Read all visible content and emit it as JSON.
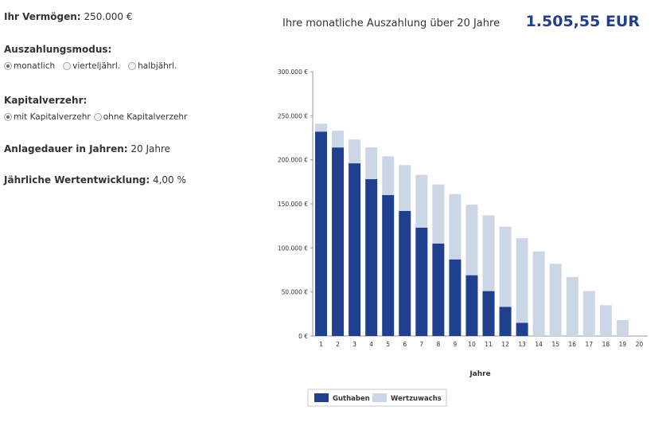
{
  "form": {
    "vermoegen": {
      "label": "Ihr Vermögen:",
      "value": "250.000 €"
    },
    "auszahlungsmodus": {
      "label": "Auszahlungsmodus:",
      "options": [
        {
          "label": "monatlich",
          "checked": true
        },
        {
          "label": "vierteljährl.",
          "checked": false
        },
        {
          "label": "halbjährl.",
          "checked": false
        }
      ]
    },
    "kapitalverzehr": {
      "label": "Kapitalverzehr:",
      "options": [
        {
          "label": "mit Kapitalverzehr",
          "checked": true
        },
        {
          "label": "ohne Kapitalverzehr",
          "checked": false
        }
      ]
    },
    "anlagedauer": {
      "label": "Anlagedauer in Jahren:",
      "value": "20 Jahre"
    },
    "wertentwicklung": {
      "label": "Jährliche Wertentwicklung:",
      "value": "4,00 %"
    }
  },
  "header": {
    "title": "Ihre monatliche Auszahlung über 20 Jahre",
    "amount": "1.505,55 EUR"
  },
  "colors": {
    "guthaben": "#1f3f8f",
    "wertzuwachs": "#cdd6e6",
    "axis": "#999999"
  },
  "chart_data": {
    "type": "bar",
    "stacked": true,
    "title": "",
    "xlabel": "Jahre",
    "ylabel": "",
    "ylim": [
      0,
      300000
    ],
    "yticks": [
      0,
      50000,
      100000,
      150000,
      200000,
      250000,
      300000
    ],
    "ytick_labels": [
      "0 €",
      "50.000 €",
      "100.000 €",
      "150.000 €",
      "200.000 €",
      "250.000 €",
      "300.000 €"
    ],
    "categories": [
      "1",
      "2",
      "3",
      "4",
      "5",
      "6",
      "7",
      "8",
      "9",
      "10",
      "11",
      "12",
      "13",
      "14",
      "15",
      "16",
      "17",
      "18",
      "19",
      "20"
    ],
    "series": [
      {
        "name": "Guthaben",
        "values": [
          232000,
          214000,
          196000,
          178000,
          160000,
          142000,
          123000,
          105000,
          87000,
          69000,
          51000,
          33000,
          15000,
          0,
          0,
          0,
          0,
          0,
          0,
          0
        ]
      },
      {
        "name": "Wertzuwachs",
        "values": [
          9000,
          19000,
          27000,
          36000,
          44000,
          52000,
          60000,
          67000,
          74000,
          80000,
          86000,
          91000,
          96000,
          96000,
          82000,
          67000,
          51000,
          35000,
          18000,
          0
        ]
      }
    ],
    "legend_position": "bottom-center"
  }
}
